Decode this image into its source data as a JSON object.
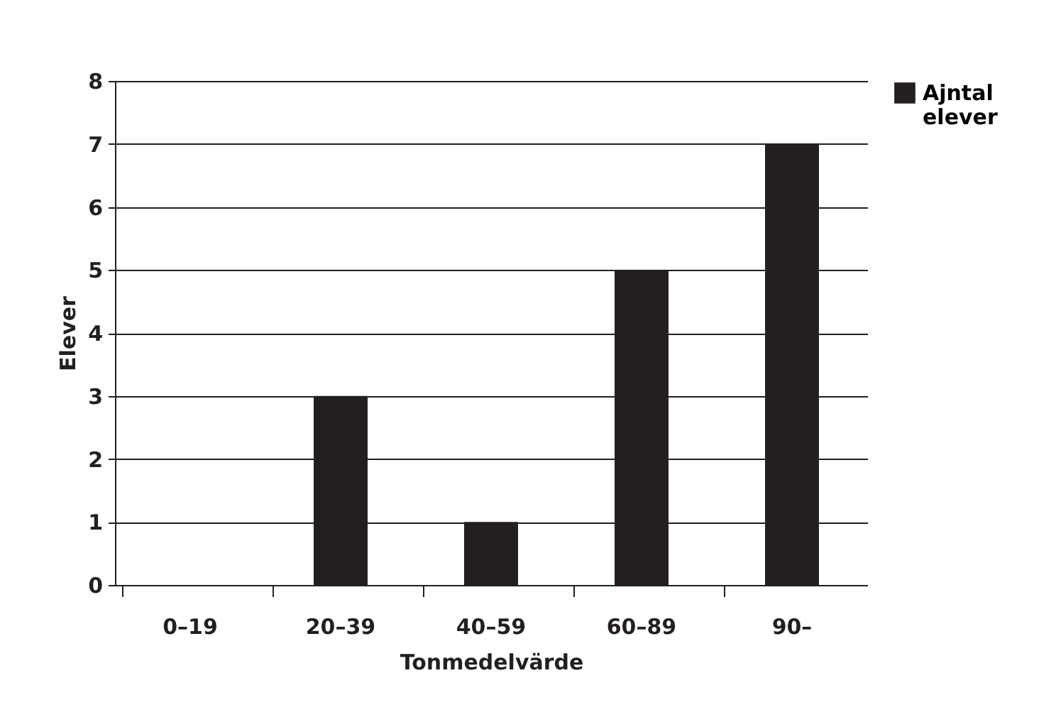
{
  "chart_data": {
    "type": "bar",
    "xlabel": "Tonmedelvärde",
    "ylabel": "Elever",
    "categories": [
      "0–19",
      "20–39",
      "40–59",
      "60–89",
      "90–"
    ],
    "series": [
      {
        "name": "Ajntal elever",
        "color": "#231f20",
        "values": [
          0,
          3,
          1,
          5,
          7
        ]
      }
    ],
    "ylim": [
      0,
      8
    ],
    "yticks": [
      0,
      1,
      2,
      3,
      4,
      5,
      6,
      7,
      8
    ],
    "grid": "y",
    "legend": "right"
  }
}
